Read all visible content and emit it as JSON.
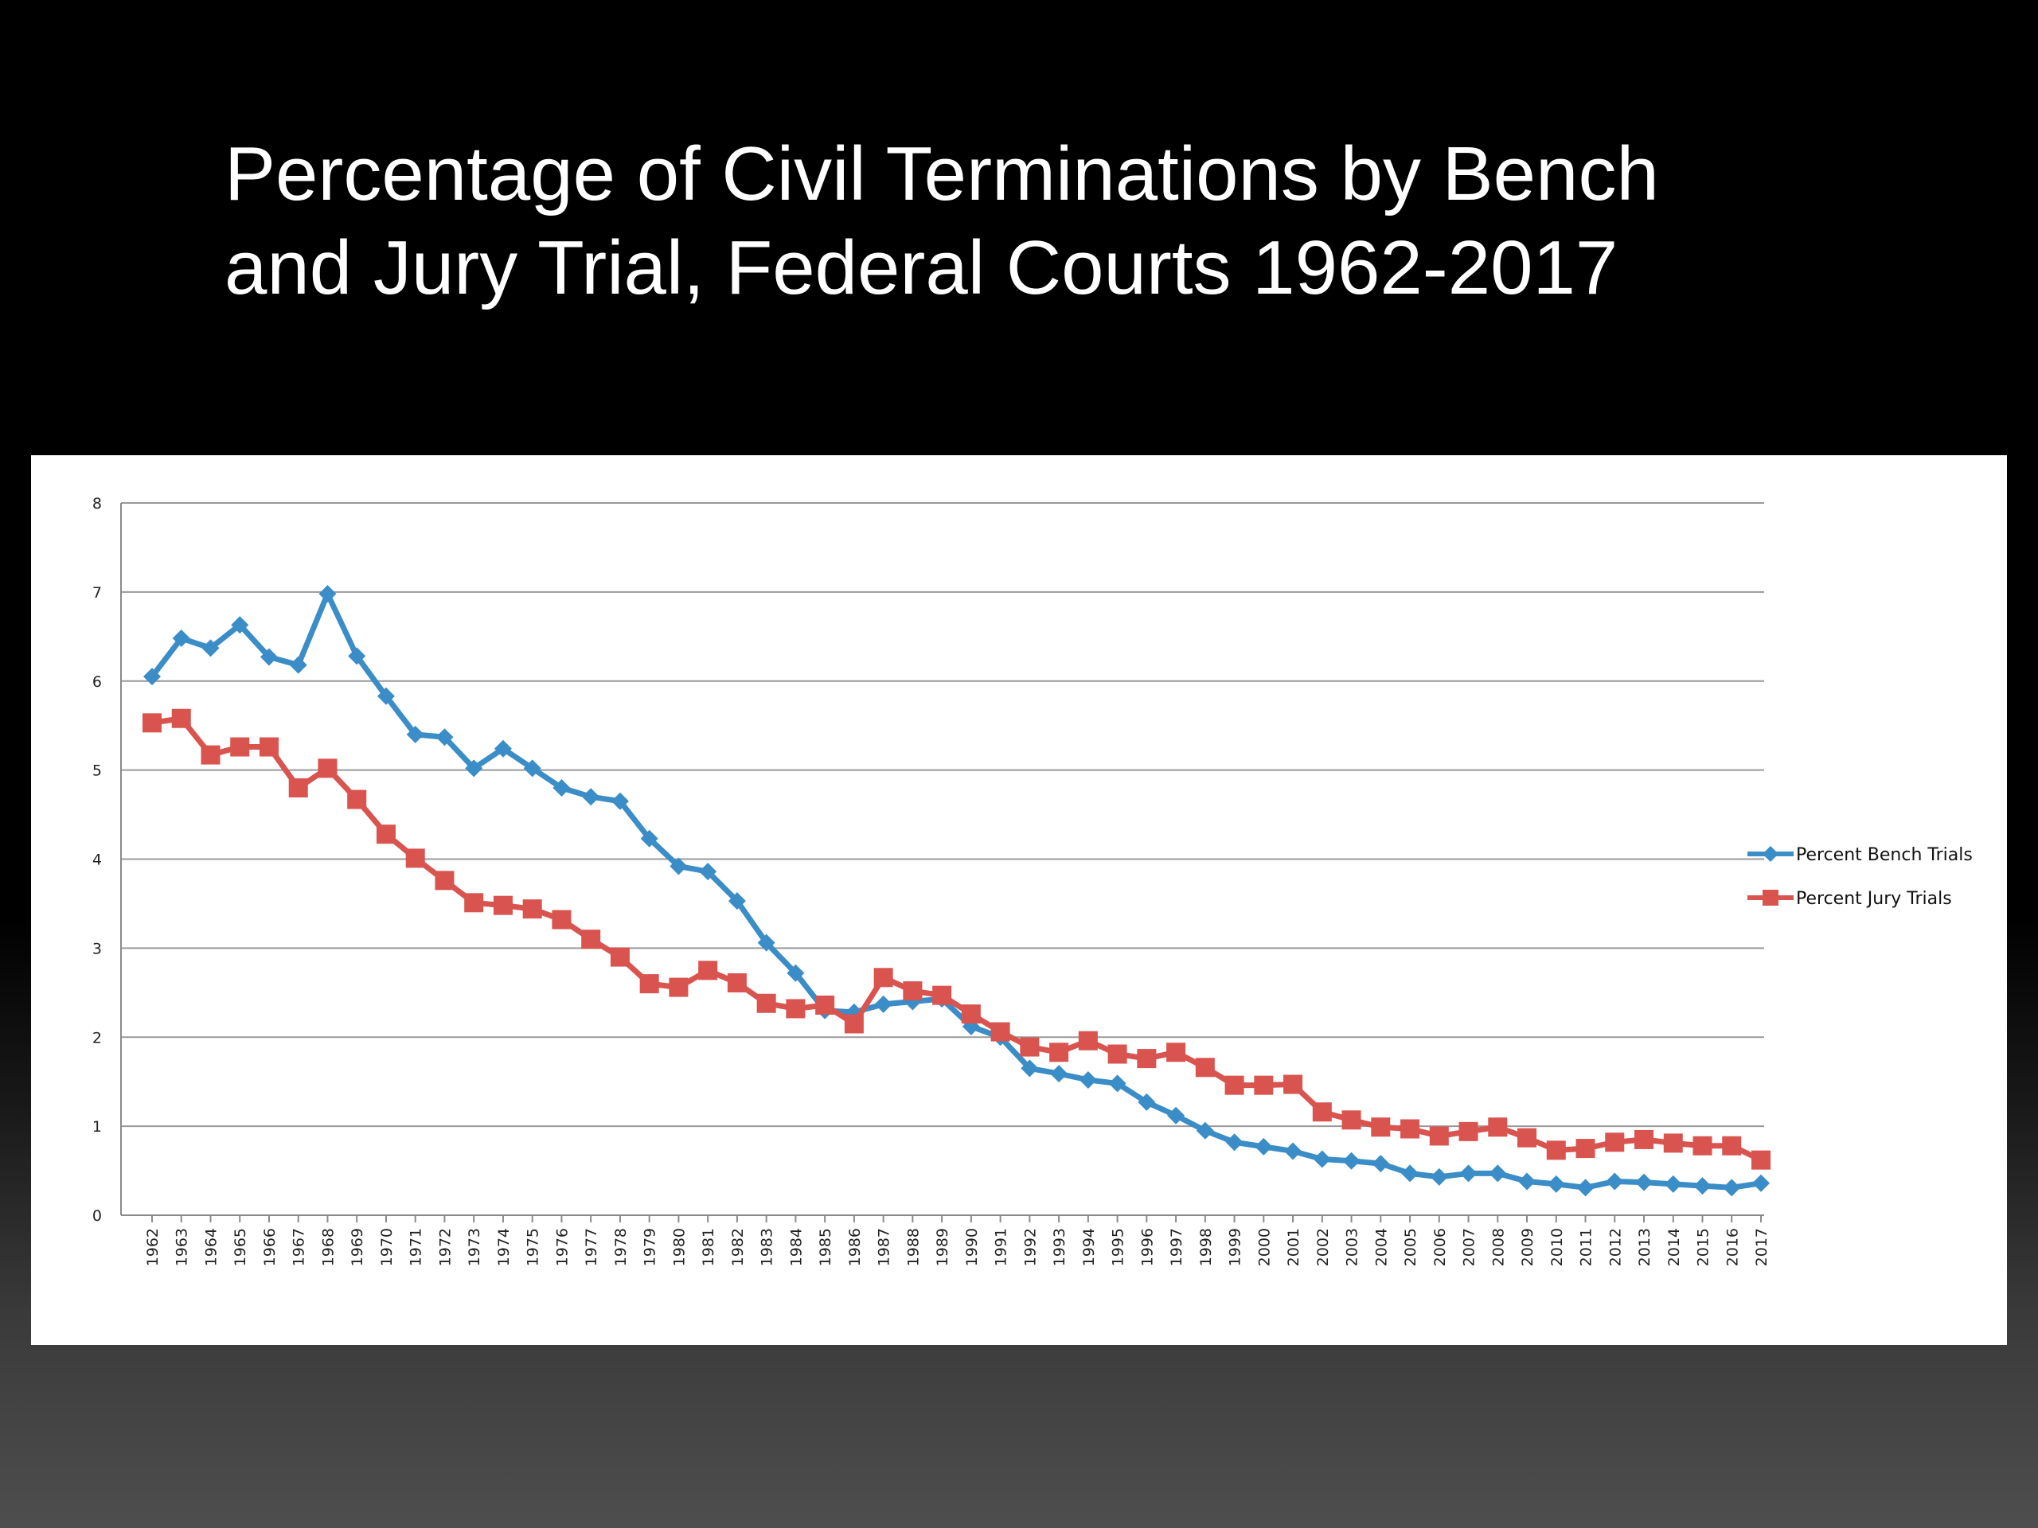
{
  "slide": {
    "title_line1": "Percentage of Civil Terminations by Bench",
    "title_line2": "and Jury Trial, Federal Courts 1962-2017"
  },
  "chart_data": {
    "type": "line",
    "title": "",
    "xlabel": "",
    "ylabel": "",
    "ylim": [
      0,
      8
    ],
    "yticks": [
      0,
      1,
      2,
      3,
      4,
      5,
      6,
      7,
      8
    ],
    "grid": true,
    "legend_position": "right",
    "categories": [
      "1962",
      "1963",
      "1964",
      "1965",
      "1966",
      "1967",
      "1968",
      "1969",
      "1970",
      "1971",
      "1972",
      "1973",
      "1974",
      "1975",
      "1976",
      "1977",
      "1978",
      "1979",
      "1980",
      "1981",
      "1982",
      "1983",
      "1984",
      "1985",
      "1986",
      "1987",
      "1988",
      "1989",
      "1990",
      "1991",
      "1992",
      "1993",
      "1994",
      "1995",
      "1996",
      "1997",
      "1998",
      "1999",
      "2000",
      "2001",
      "2002",
      "2003",
      "2004",
      "2005",
      "2006",
      "2007",
      "2008",
      "2009",
      "2010",
      "2011",
      "2012",
      "2013",
      "2014",
      "2015",
      "2016",
      "2017"
    ],
    "series": [
      {
        "name": "Percent Bench Trials",
        "color": "#3a8dc6",
        "marker": "diamond",
        "values": [
          6.05,
          6.48,
          6.37,
          6.63,
          6.27,
          6.18,
          6.98,
          6.28,
          5.83,
          5.4,
          5.37,
          5.02,
          5.24,
          5.02,
          4.8,
          4.7,
          4.65,
          4.23,
          3.92,
          3.86,
          3.53,
          3.06,
          2.72,
          2.3,
          2.28,
          2.37,
          2.4,
          2.43,
          2.12,
          2.0,
          1.65,
          1.59,
          1.52,
          1.48,
          1.27,
          1.12,
          0.95,
          0.82,
          0.77,
          0.72,
          0.63,
          0.61,
          0.58,
          0.47,
          0.43,
          0.47,
          0.47,
          0.38,
          0.35,
          0.31,
          0.38,
          0.37,
          0.35,
          0.33,
          0.31,
          0.36
        ]
      },
      {
        "name": "Percent Jury Trials",
        "color": "#d9534f",
        "marker": "square",
        "values": [
          5.53,
          5.58,
          5.17,
          5.26,
          5.26,
          4.8,
          5.02,
          4.67,
          4.28,
          4.01,
          3.76,
          3.51,
          3.48,
          3.44,
          3.32,
          3.1,
          2.9,
          2.6,
          2.56,
          2.75,
          2.61,
          2.38,
          2.32,
          2.36,
          2.15,
          2.67,
          2.52,
          2.47,
          2.26,
          2.06,
          1.89,
          1.83,
          1.96,
          1.81,
          1.76,
          1.83,
          1.66,
          1.46,
          1.46,
          1.47,
          1.16,
          1.07,
          0.99,
          0.97,
          0.89,
          0.94,
          0.99,
          0.87,
          0.73,
          0.75,
          0.82,
          0.85,
          0.81,
          0.78,
          0.78,
          0.62
        ]
      }
    ]
  }
}
